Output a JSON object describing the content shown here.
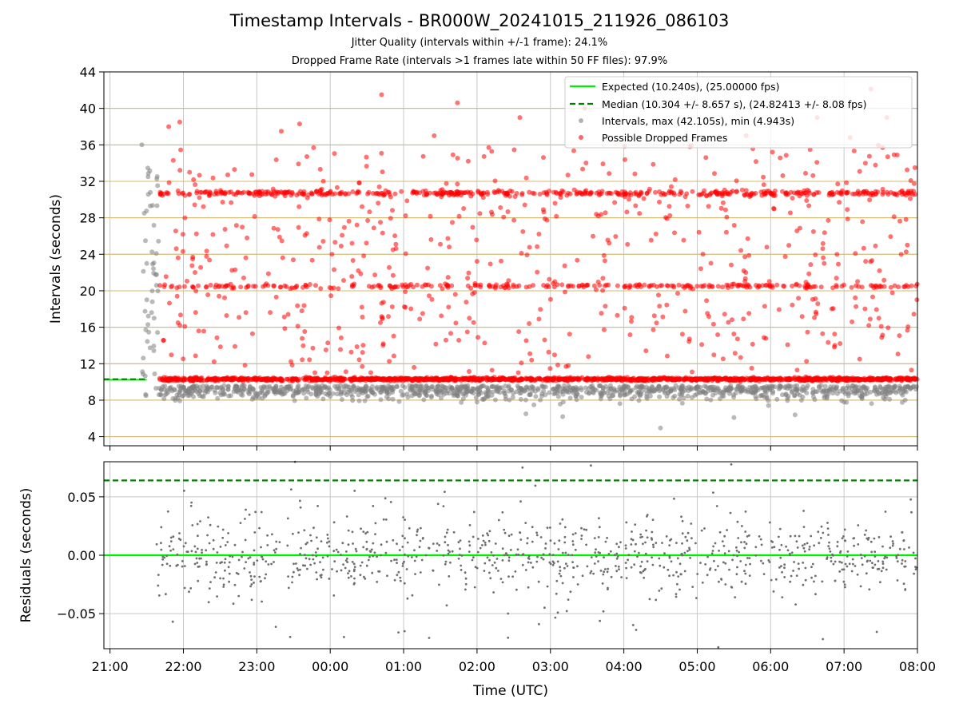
{
  "chart_data": [
    {
      "type": "scatter",
      "title": "Timestamp Intervals - BR000W_20241015_211926_086103",
      "subtitle1": "Jitter Quality (intervals within +/-1 frame): 24.1%",
      "subtitle2": "Dropped Frame Rate (intervals >1 frames late within 50 FF files): 97.9%",
      "ylabel": "Intervals (seconds)",
      "xlabel": "",
      "xlim": [
        "2024-10-15 20:55",
        "2024-10-16 08:00"
      ],
      "ylim": [
        3,
        44
      ],
      "yticks": [
        "4",
        "8",
        "12",
        "16",
        "20",
        "24",
        "28",
        "32",
        "36",
        "40",
        "44"
      ],
      "ytick_values": [
        4,
        8,
        12,
        16,
        20,
        24,
        28,
        32,
        36,
        40,
        44
      ],
      "horizontal_guides": [
        4,
        8,
        12,
        16,
        20,
        24,
        28,
        32,
        36,
        40,
        44
      ],
      "grid": true,
      "legend_position": "top-right",
      "legend": [
        "Expected (10.240s), (25.00000 fps)",
        "Median (10.304 +/- 8.657 s), (24.82413 +/- 8.08 fps)",
        "Intervals, max (42.105s), min (4.943s)",
        "Possible Dropped Frames"
      ],
      "expected_interval": 10.24,
      "median_interval": 10.304,
      "reference_lines_extent": [
        "2024-10-15 20:55",
        "2024-10-15 21:30"
      ],
      "series": [
        {
          "name": "Intervals, max (42.105s), min (4.943s)",
          "color": "#808080",
          "summary": {
            "max": 42.105,
            "min": 4.943,
            "time_range": [
              "2024-10-15 21:26",
              "2024-10-16 08:00"
            ]
          },
          "points_sample": [
            [
              "2024-10-15 21:26",
              36.0
            ],
            [
              "2024-10-15 21:28",
              28.5
            ],
            [
              "2024-10-15 21:29",
              25.5
            ],
            [
              "2024-10-15 21:30",
              23.0
            ],
            [
              "2024-10-15 21:31",
              16.3
            ],
            [
              "2024-10-15 21:33",
              30.8
            ],
            [
              "2024-10-15 21:36",
              17.0
            ],
            [
              "2024-10-15 21:38",
              20.6
            ],
            [
              "2024-10-15 21:40",
              8.6
            ],
            [
              "2024-10-15 22:00",
              9.4
            ],
            [
              "2024-10-15 22:30",
              8.8
            ],
            [
              "2024-10-15 23:00",
              8.5
            ],
            [
              "2024-10-16 00:00",
              8.4
            ],
            [
              "2024-10-16 01:00",
              8.6
            ],
            [
              "2024-10-16 02:00",
              7.8
            ],
            [
              "2024-10-16 02:40",
              6.5
            ],
            [
              "2024-10-16 03:10",
              6.2
            ],
            [
              "2024-10-16 04:30",
              4.943
            ],
            [
              "2024-10-16 05:30",
              6.1
            ],
            [
              "2024-10-16 06:20",
              6.4
            ],
            [
              "2024-10-16 07:00",
              7.8
            ],
            [
              "2024-10-16 07:50",
              8.0
            ]
          ]
        },
        {
          "name": "Possible Dropped Frames",
          "color": "#ff0000",
          "summary": {
            "bands": [
              10.3,
              20.5,
              30.7
            ],
            "max": 42.105,
            "time_range": [
              "2024-10-15 21:40",
              "2024-10-16 08:00"
            ]
          },
          "points_sample": [
            [
              "2024-10-15 21:48",
              38.0
            ],
            [
              "2024-10-15 21:57",
              38.5
            ],
            [
              "2024-10-15 22:05",
              33.0
            ],
            [
              "2024-10-15 23:20",
              37.5
            ],
            [
              "2024-10-15 23:35",
              38.3
            ],
            [
              "2024-10-16 00:42",
              41.5
            ],
            [
              "2024-10-16 01:25",
              37.0
            ],
            [
              "2024-10-16 01:44",
              40.6
            ],
            [
              "2024-10-16 02:35",
              39.0
            ],
            [
              "2024-10-16 03:28",
              40.0
            ],
            [
              "2024-10-16 05:40",
              37.0
            ],
            [
              "2024-10-16 06:38",
              39.0
            ],
            [
              "2024-10-16 07:05",
              36.8
            ],
            [
              "2024-10-16 07:22",
              42.105
            ],
            [
              "2024-10-16 07:35",
              39.0
            ],
            [
              "2024-10-16 07:58",
              33.5
            ]
          ]
        }
      ]
    },
    {
      "type": "scatter",
      "ylabel": "Residuals (seconds)",
      "xlabel": "Time (UTC)",
      "xlim": [
        "2024-10-15 20:55",
        "2024-10-16 08:00"
      ],
      "xticks": [
        "21:00",
        "22:00",
        "23:00",
        "00:00",
        "01:00",
        "02:00",
        "03:00",
        "04:00",
        "05:00",
        "06:00",
        "07:00",
        "08:00"
      ],
      "ylim": [
        -0.08,
        0.08
      ],
      "yticks": [
        "−0.05",
        "0.00",
        "0.05"
      ],
      "ytick_values": [
        -0.05,
        0.0,
        0.05
      ],
      "grid": true,
      "reference_lines": [
        {
          "y": 0.0,
          "color": "#00ee00",
          "style": "solid"
        },
        {
          "y": 0.064,
          "color": "#008000",
          "style": "dashed"
        }
      ],
      "series": [
        {
          "name": "",
          "color": "#6e6e6e",
          "summary": {
            "range": [
              -0.08,
              0.08
            ],
            "time_range": [
              "2024-10-15 21:36",
              "2024-10-16 08:00"
            ]
          }
        }
      ]
    }
  ]
}
